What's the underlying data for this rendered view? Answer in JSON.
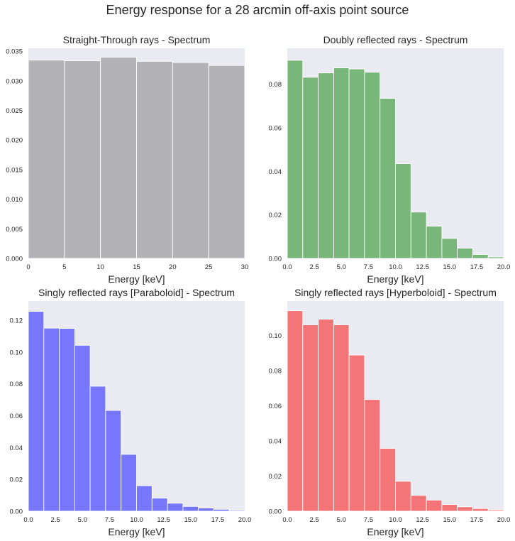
{
  "figure": {
    "title": "Energy response for a 28 arcmin off-axis point source"
  },
  "chart_data": [
    {
      "type": "bar",
      "histogram": true,
      "title": "Straight-Through rays - Spectrum",
      "xlabel": "Energy [keV]",
      "ylabel": "",
      "color": "#b3b3b7",
      "bin_edges": [
        0,
        5,
        10,
        15,
        20,
        25,
        30
      ],
      "values": [
        0.0335,
        0.0334,
        0.034,
        0.0333,
        0.0331,
        0.0326
      ],
      "xlim": [
        0,
        30
      ],
      "ylim": [
        0,
        0.0355
      ],
      "xticks": [
        0,
        5,
        10,
        15,
        20,
        25,
        30
      ],
      "xtick_labels": [
        "0",
        "5",
        "10",
        "15",
        "20",
        "25",
        "30"
      ],
      "yticks": [
        0,
        0.005,
        0.01,
        0.015,
        0.02,
        0.025,
        0.03,
        0.035
      ],
      "ytick_labels": [
        "0.000",
        "0.005",
        "0.010",
        "0.015",
        "0.020",
        "0.025",
        "0.030",
        "0.035"
      ],
      "grid": false
    },
    {
      "type": "bar",
      "histogram": true,
      "title": "Doubly reflected rays - Spectrum",
      "xlabel": "Energy [keV]",
      "ylabel": "",
      "color": "#78b67a",
      "bin_edges": [
        0,
        1.43,
        2.86,
        4.29,
        5.71,
        7.14,
        8.57,
        10.0,
        11.43,
        12.86,
        14.29,
        15.71,
        17.14,
        18.57,
        20.0
      ],
      "values": [
        0.091,
        0.0832,
        0.0852,
        0.0875,
        0.087,
        0.0855,
        0.0735,
        0.0435,
        0.0213,
        0.0148,
        0.0092,
        0.0047,
        0.0018,
        0.0007
      ],
      "xlim": [
        0,
        20
      ],
      "ylim": [
        0,
        0.0965
      ],
      "xticks": [
        0,
        2.5,
        5.0,
        7.5,
        10.0,
        12.5,
        15.0,
        17.5,
        20.0
      ],
      "xtick_labels": [
        "0.0",
        "2.5",
        "5.0",
        "7.5",
        "10.0",
        "12.5",
        "15.0",
        "17.5",
        "20.0"
      ],
      "yticks": [
        0,
        0.02,
        0.04,
        0.06,
        0.08
      ],
      "ytick_labels": [
        "0.00",
        "0.02",
        "0.04",
        "0.06",
        "0.08"
      ],
      "grid": false
    },
    {
      "type": "bar",
      "histogram": true,
      "title": "Singly reflected rays [Paraboloid] - Spectrum",
      "xlabel": "Energy [keV]",
      "ylabel": "",
      "color": "#7777fb",
      "bin_edges": [
        0,
        1.43,
        2.86,
        4.29,
        5.71,
        7.14,
        8.57,
        10.0,
        11.43,
        12.86,
        14.29,
        15.71,
        17.14,
        18.57,
        20.0
      ],
      "values": [
        0.1255,
        0.115,
        0.1148,
        0.1042,
        0.0785,
        0.0633,
        0.0357,
        0.016,
        0.0082,
        0.005,
        0.003,
        0.002,
        0.0012,
        0.0006
      ],
      "xlim": [
        0,
        20
      ],
      "ylim": [
        0,
        0.132
      ],
      "xticks": [
        0,
        2.5,
        5.0,
        7.5,
        10.0,
        12.5,
        15.0,
        17.5,
        20.0
      ],
      "xtick_labels": [
        "0.0",
        "2.5",
        "5.0",
        "7.5",
        "10.0",
        "12.5",
        "15.0",
        "17.5",
        "20.0"
      ],
      "yticks": [
        0,
        0.02,
        0.04,
        0.06,
        0.08,
        0.1,
        0.12
      ],
      "ytick_labels": [
        "0.00",
        "0.02",
        "0.04",
        "0.06",
        "0.08",
        "0.10",
        "0.12"
      ],
      "grid": false
    },
    {
      "type": "bar",
      "histogram": true,
      "title": "Singly reflected rays [Hyperboloid] - Spectrum",
      "xlabel": "Energy [keV]",
      "ylabel": "",
      "color": "#f37577",
      "bin_edges": [
        0,
        1.43,
        2.86,
        4.29,
        5.71,
        7.14,
        8.57,
        10.0,
        11.43,
        12.86,
        14.29,
        15.71,
        17.14,
        18.57,
        20.0
      ],
      "values": [
        0.114,
        0.106,
        0.1092,
        0.106,
        0.0888,
        0.0635,
        0.0357,
        0.017,
        0.009,
        0.0063,
        0.0038,
        0.0025,
        0.0015,
        0.0007
      ],
      "xlim": [
        0,
        20
      ],
      "ylim": [
        0,
        0.1195
      ],
      "xticks": [
        0,
        2.5,
        5.0,
        7.5,
        10.0,
        12.5,
        15.0,
        17.5,
        20.0
      ],
      "xtick_labels": [
        "0.0",
        "2.5",
        "5.0",
        "7.5",
        "10.0",
        "12.5",
        "15.0",
        "17.5",
        "20.0"
      ],
      "yticks": [
        0,
        0.02,
        0.04,
        0.06,
        0.08,
        0.1
      ],
      "ytick_labels": [
        "0.00",
        "0.02",
        "0.04",
        "0.06",
        "0.08",
        "0.10"
      ],
      "grid": false
    }
  ]
}
